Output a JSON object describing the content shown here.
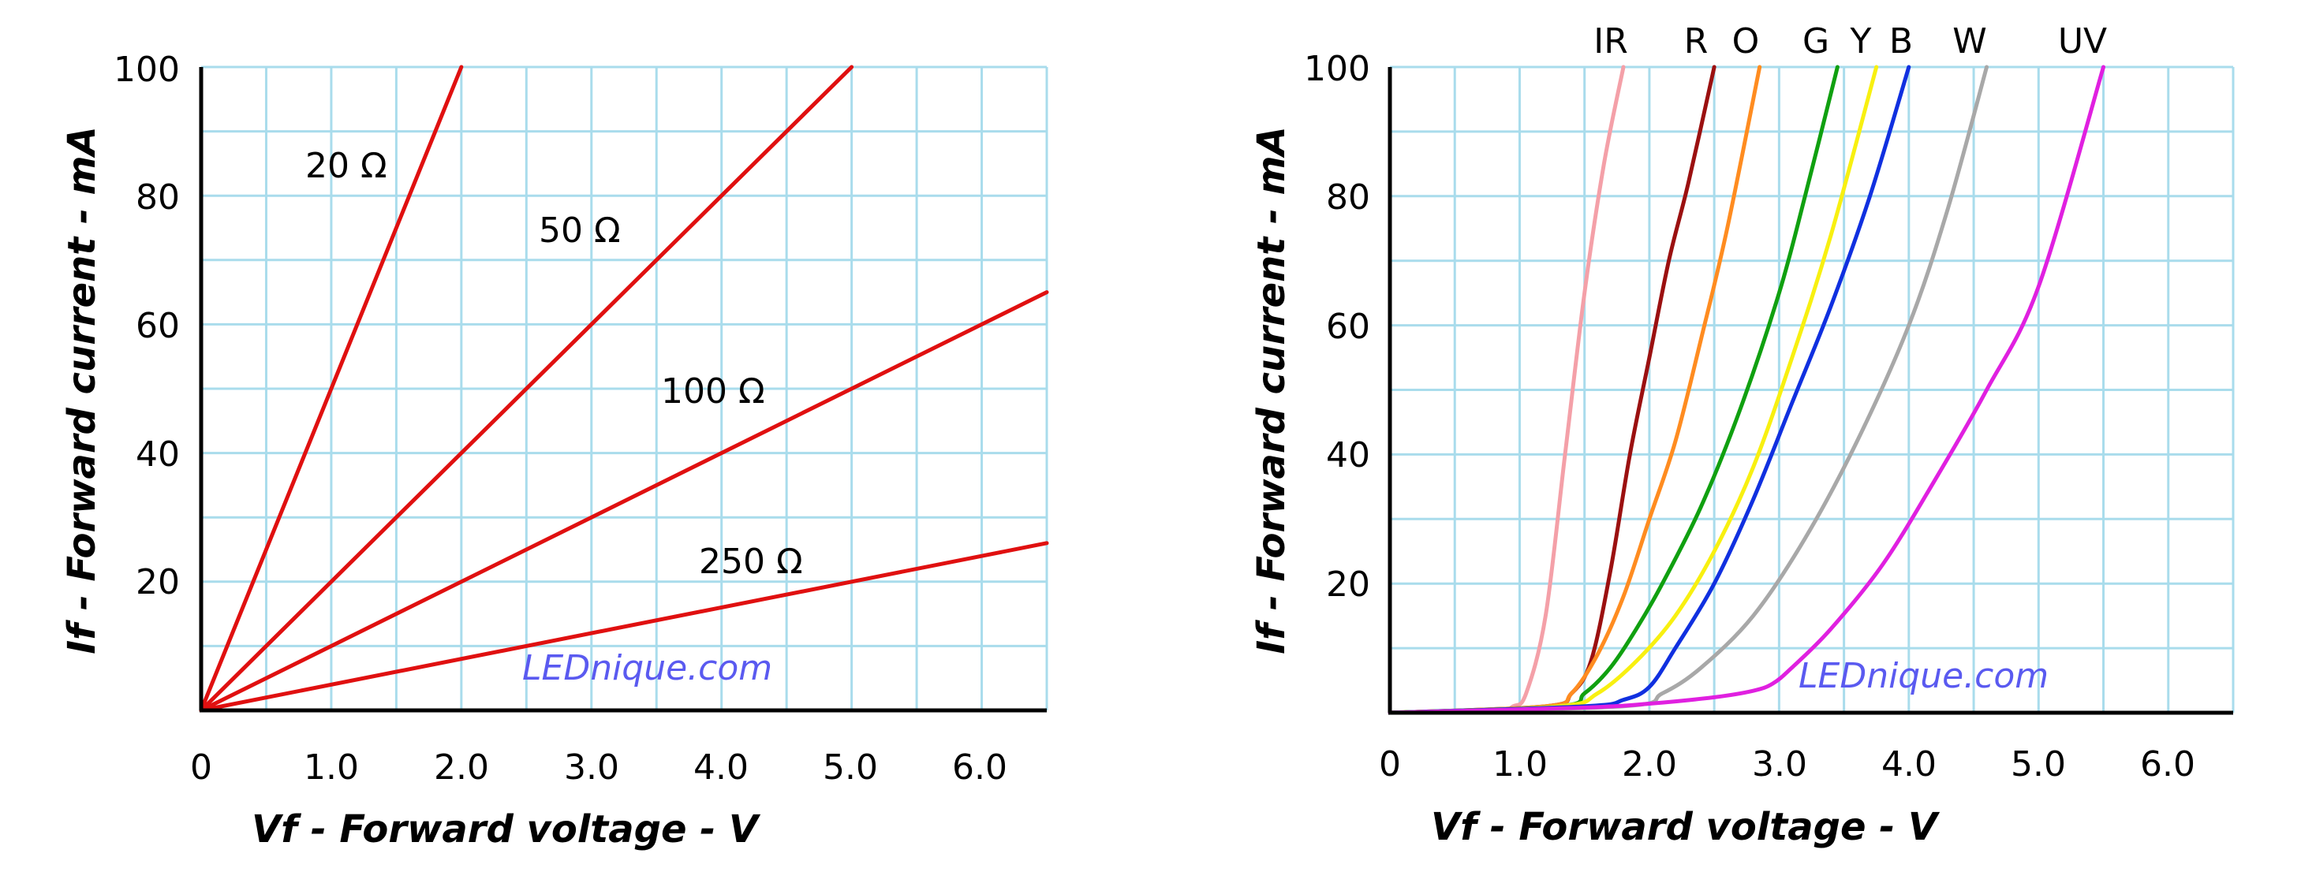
{
  "chart_data": [
    {
      "type": "line",
      "xlabel": "Vf - Forward voltage - V",
      "ylabel": "If - Forward current - mA",
      "xlim": [
        0,
        6.5
      ],
      "ylim": [
        0,
        100
      ],
      "x_ticks": [
        "0",
        "1.0",
        "2.0",
        "3.0",
        "4.0",
        "5.0",
        "6.0"
      ],
      "y_ticks": [
        "20",
        "40",
        "60",
        "80",
        "100"
      ],
      "grid": true,
      "watermark": "LEDnique.com",
      "series": [
        {
          "name": "20 Ω",
          "color": "#e01010",
          "x": [
            0,
            2.0
          ],
          "y": [
            0,
            100
          ],
          "label_at": [
            1.15,
            85
          ]
        },
        {
          "name": "50 Ω",
          "color": "#e01010",
          "x": [
            0,
            5.0
          ],
          "y": [
            0,
            100
          ],
          "label_at": [
            2.95,
            75
          ]
        },
        {
          "name": "100 Ω",
          "color": "#e01010",
          "x": [
            0,
            6.5
          ],
          "y": [
            0,
            65
          ],
          "label_at": [
            4.0,
            49.5
          ]
        },
        {
          "name": "250 Ω",
          "color": "#e01010",
          "x": [
            0,
            6.5
          ],
          "y": [
            0,
            26
          ],
          "label_at": [
            4.3,
            23
          ]
        }
      ]
    },
    {
      "type": "line",
      "xlabel": "Vf - Forward voltage - V",
      "ylabel": "If - Forward current - mA",
      "xlim": [
        0,
        6.5
      ],
      "ylim": [
        0,
        100
      ],
      "x_ticks": [
        "0",
        "1.0",
        "2.0",
        "3.0",
        "4.0",
        "5.0",
        "6.0"
      ],
      "y_ticks": [
        "20",
        "40",
        "60",
        "80",
        "100"
      ],
      "grid": true,
      "watermark": "LEDnique.com",
      "series": [
        {
          "name": "IR",
          "color": "#f4a0a8",
          "x": [
            0,
            0.8,
            0.95,
            1.05,
            1.2,
            1.35,
            1.5,
            1.65,
            1.8
          ],
          "y": [
            0,
            0.3,
            1,
            3,
            15,
            40,
            65,
            85,
            100
          ]
        },
        {
          "name": "R",
          "color": "#9b1010",
          "x": [
            0,
            1.2,
            1.4,
            1.55,
            1.7,
            1.85,
            2.0,
            2.15,
            2.3,
            2.5
          ],
          "y": [
            0,
            1,
            3,
            8,
            22,
            40,
            55,
            70,
            82,
            100
          ]
        },
        {
          "name": "O",
          "color": "#ff8c20",
          "x": [
            0,
            1.2,
            1.4,
            1.6,
            1.8,
            2.0,
            2.2,
            2.4,
            2.6,
            2.85
          ],
          "y": [
            0,
            1,
            3,
            9,
            18,
            30,
            42,
            58,
            75,
            100
          ]
        },
        {
          "name": "G",
          "color": "#10a010",
          "x": [
            0,
            1.3,
            1.5,
            1.7,
            1.9,
            2.1,
            2.4,
            2.7,
            3.0,
            3.2,
            3.45
          ],
          "y": [
            0,
            1,
            3,
            7,
            13,
            20,
            32,
            47,
            65,
            80,
            100
          ]
        },
        {
          "name": "Y",
          "color": "#f8f010",
          "x": [
            0,
            1.3,
            1.6,
            1.9,
            2.2,
            2.5,
            2.8,
            3.1,
            3.4,
            3.75
          ],
          "y": [
            0,
            1,
            3,
            8,
            15,
            25,
            38,
            55,
            74,
            100
          ]
        },
        {
          "name": "B",
          "color": "#1030e0",
          "x": [
            0,
            1.5,
            1.8,
            2.0,
            2.2,
            2.5,
            2.8,
            3.1,
            3.4,
            3.7,
            4.0
          ],
          "y": [
            0,
            1,
            2,
            4,
            10,
            20,
            33,
            48,
            63,
            80,
            100
          ]
        },
        {
          "name": "W",
          "color": "#a8a8a8",
          "x": [
            0,
            1.8,
            2.1,
            2.4,
            2.8,
            3.2,
            3.6,
            4.0,
            4.3,
            4.6
          ],
          "y": [
            0,
            1,
            3,
            7,
            15,
            27,
            42,
            60,
            78,
            100
          ]
        },
        {
          "name": "UV",
          "color": "#e020e0",
          "x": [
            0,
            1.5,
            2.0,
            2.5,
            2.8,
            2.95,
            3.1,
            3.4,
            3.8,
            4.2,
            4.6,
            5.0,
            5.5
          ],
          "y": [
            0,
            0.8,
            1.4,
            2.4,
            3.4,
            4.5,
            7,
            13,
            23,
            36,
            50,
            66,
            100
          ]
        }
      ]
    }
  ]
}
